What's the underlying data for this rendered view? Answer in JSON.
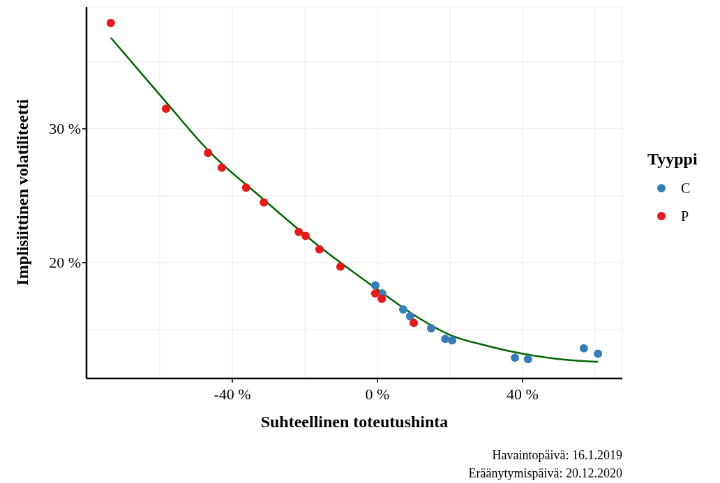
{
  "chart_data": {
    "type": "scatter",
    "xlabel": "Suhteellinen toteutushinta",
    "ylabel": "Implisiittinen volatiliteetti",
    "legend_title": "Tyyppi",
    "xlim": [
      -80.2,
      67.5
    ],
    "ylim": [
      11.35,
      39.1
    ],
    "xticks": [
      {
        "value": -60,
        "label": null
      },
      {
        "value": -40,
        "label": "-40 %"
      },
      {
        "value": -20,
        "label": null
      },
      {
        "value": 0,
        "label": "0 %"
      },
      {
        "value": 20,
        "label": null
      },
      {
        "value": 40,
        "label": "40 %"
      },
      {
        "value": 60,
        "label": null
      }
    ],
    "yticks": [
      {
        "value": 15,
        "label": null
      },
      {
        "value": 20,
        "label": "20 %"
      },
      {
        "value": 25,
        "label": null
      },
      {
        "value": 30,
        "label": "30 %"
      },
      {
        "value": 35,
        "label": null
      }
    ],
    "grid": true,
    "legend": "right",
    "marker": "circle",
    "series": [
      {
        "name": "C",
        "color": "#377eb8",
        "x": [
          -0.6,
          1.3,
          7.1,
          9.0,
          14.8,
          18.7,
          20.6,
          37.9,
          41.5,
          56.9,
          60.8
        ],
        "values": [
          18.3,
          17.7,
          16.5,
          16.0,
          15.1,
          14.3,
          14.2,
          12.9,
          12.8,
          13.6,
          13.2
        ]
      },
      {
        "name": "P",
        "color": "#e41a1c",
        "x": [
          -73.5,
          -58.3,
          -46.7,
          -42.9,
          -36.2,
          -31.3,
          -21.7,
          -19.8,
          -16.0,
          -10.2,
          -0.6,
          1.2,
          10.0
        ],
        "values": [
          37.9,
          31.5,
          28.2,
          27.1,
          25.6,
          24.5,
          22.3,
          22.0,
          21.0,
          19.7,
          17.7,
          17.3,
          15.5
        ]
      },
      {
        "type": "line",
        "color": "#006400",
        "line_style": "solid",
        "marker": "none",
        "x": [
          -73.5,
          -58.3,
          -46.7,
          -31.3,
          -16.0,
          0,
          10,
          20,
          30,
          40,
          50,
          60.8
        ],
        "values": [
          36.8,
          32.0,
          28.4,
          24.7,
          21.2,
          18.0,
          16.1,
          14.6,
          13.8,
          13.2,
          12.8,
          12.6
        ]
      }
    ],
    "annotations": [
      "Havaintopäivä: 16.1.2019",
      "Eräänytymispäivä: 20.12.2020"
    ]
  }
}
